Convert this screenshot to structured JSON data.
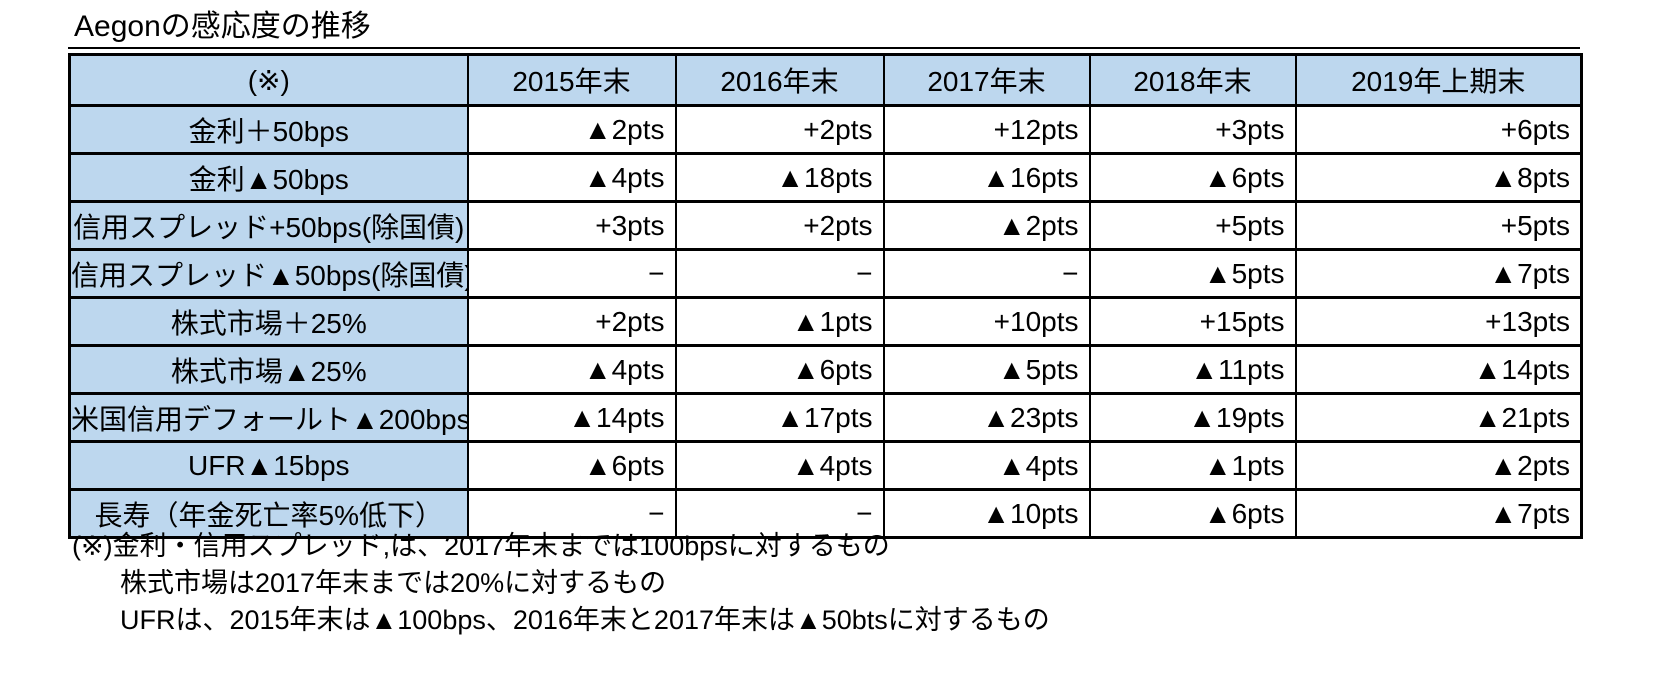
{
  "title": "Aegonの感応度の推移",
  "colors": {
    "header_bg": "#BDD7EE",
    "border": "#000000",
    "page_bg": "#FFFFFF"
  },
  "table": {
    "header": [
      "(※)",
      "2015年末",
      "2016年末",
      "2017年末",
      "2018年末",
      "2019年上期末"
    ],
    "rows": [
      {
        "label": "金利＋50bps",
        "values": [
          "▲2pts",
          "+2pts",
          "+12pts",
          "+3pts",
          "+6pts"
        ]
      },
      {
        "label": "金利▲50bps",
        "values": [
          "▲4pts",
          "▲18pts",
          "▲16pts",
          "▲6pts",
          "▲8pts"
        ]
      },
      {
        "label": "信用スプレッド+50bps(除国債)",
        "values": [
          "+3pts",
          "+2pts",
          "▲2pts",
          "+5pts",
          "+5pts"
        ]
      },
      {
        "label": "信用スプレッド▲50bps(除国債)",
        "values": [
          "−",
          "−",
          "−",
          "▲5pts",
          "▲7pts"
        ]
      },
      {
        "label": "株式市場＋25%",
        "values": [
          "+2pts",
          "▲1pts",
          "+10pts",
          "+15pts",
          "+13pts"
        ]
      },
      {
        "label": "株式市場▲25%",
        "values": [
          "▲4pts",
          "▲6pts",
          "▲5pts",
          "▲11pts",
          "▲14pts"
        ]
      },
      {
        "label": "米国信用デフォールト▲200bps",
        "values": [
          "▲14pts",
          "▲17pts",
          "▲23pts",
          "▲19pts",
          "▲21pts"
        ]
      },
      {
        "label": "UFR▲15bps",
        "values": [
          "▲6pts",
          "▲4pts",
          "▲4pts",
          "▲1pts",
          "▲2pts"
        ]
      },
      {
        "label": "長寿（年金死亡率5%低下）",
        "values": [
          "−",
          "−",
          "▲10pts",
          "▲6pts",
          "▲7pts"
        ]
      }
    ]
  },
  "footnotes": [
    "(※)金利・信用スプレッド,は、2017年末までは100bpsに対するもの",
    "株式市場は2017年末までは20%に対するもの",
    "UFRは、2015年末は▲100bps、2016年末と2017年末は▲50btsに対するもの"
  ]
}
